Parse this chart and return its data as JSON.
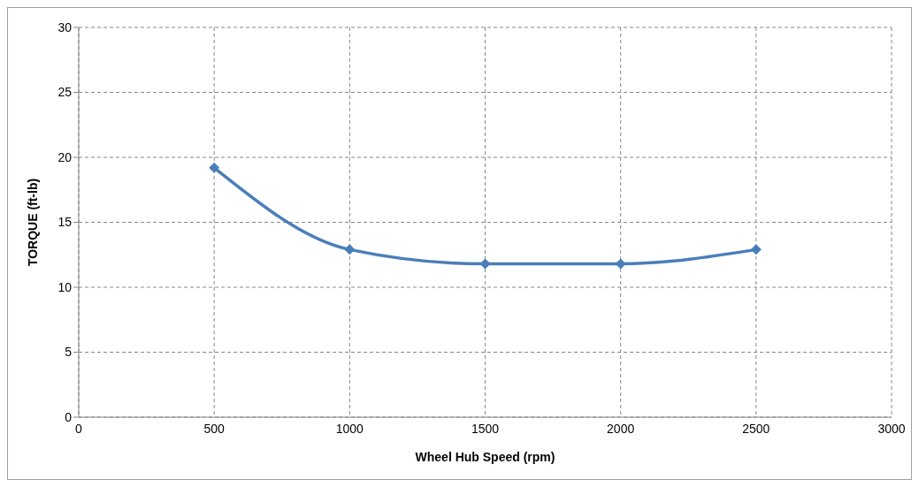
{
  "chart_data": {
    "type": "line",
    "xlabel": "Wheel Hub Speed (rpm)",
    "ylabel": "TORQUE (ft-lb)",
    "x": [
      500,
      1000,
      1500,
      2000,
      2500
    ],
    "series": [
      {
        "color": "#4a7ebb",
        "values": [
          19.2,
          12.9,
          11.8,
          11.8,
          12.9
        ]
      }
    ],
    "xlim": [
      0,
      3000
    ],
    "xticks": [
      0,
      500,
      1000,
      1500,
      2000,
      2500,
      3000
    ],
    "ylim": [
      0,
      30
    ],
    "yticks": [
      0,
      5,
      10,
      15,
      20,
      25,
      30
    ],
    "grid": true,
    "marker": "diamond",
    "line_style": "solid"
  }
}
